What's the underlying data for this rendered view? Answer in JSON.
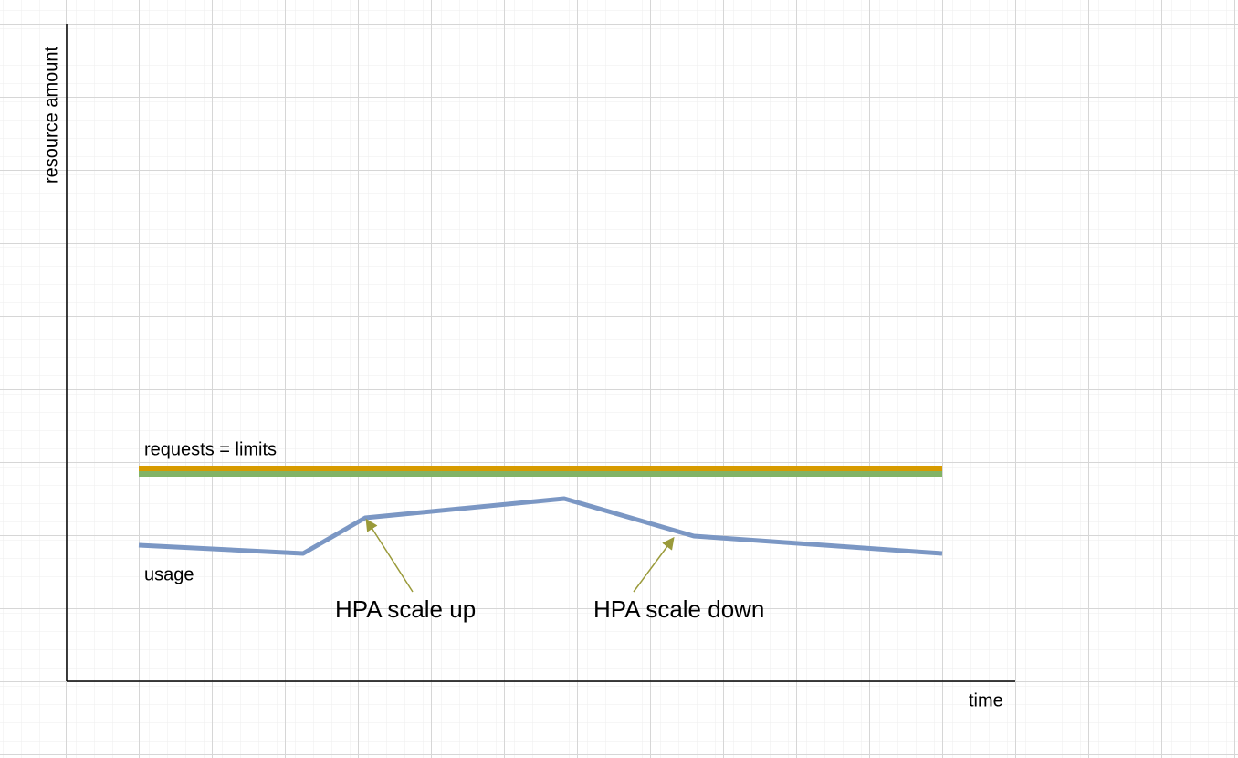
{
  "axes": {
    "y_label": "resource amount",
    "x_label": "time"
  },
  "labels": {
    "limits": "requests = limits",
    "usage": "usage",
    "scale_up": "HPA scale up",
    "scale_down": "HPA scale down"
  }
}
